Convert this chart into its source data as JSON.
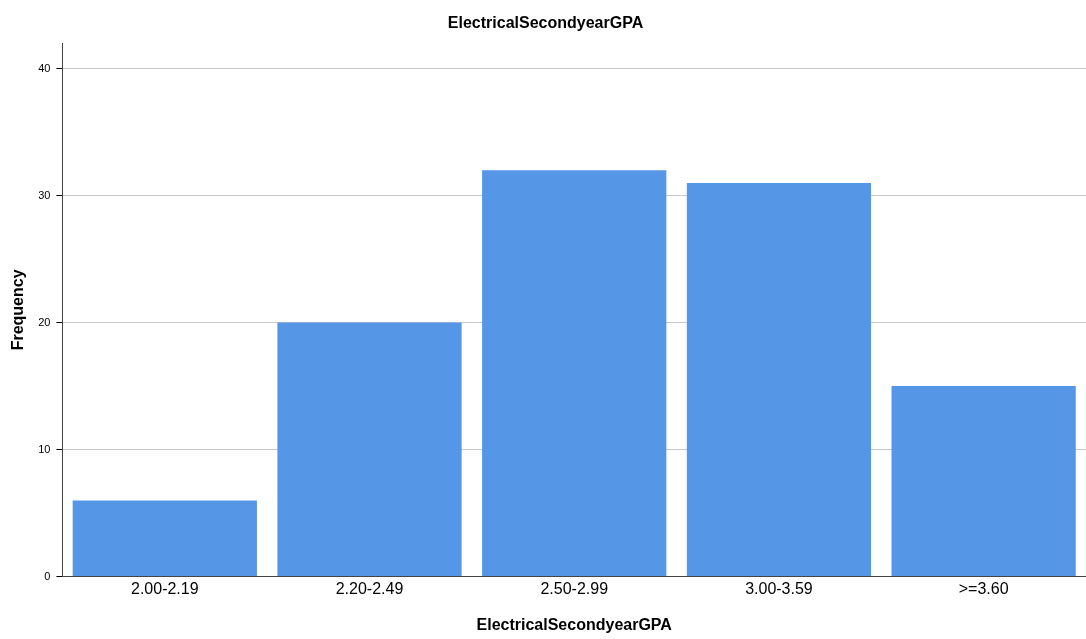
{
  "chart_data": {
    "type": "bar",
    "title": "ElectricalSecondyearGPA",
    "xlabel": "ElectricalSecondyearGPA",
    "ylabel": "Frequency",
    "categories": [
      "2.00-2.19",
      "2.20-2.49",
      "2.50-2.99",
      "3.00-3.59",
      ">=3.60"
    ],
    "values": [
      6,
      20,
      32,
      31,
      15
    ],
    "color": "#5596e6",
    "ylim": [
      0,
      42
    ],
    "yticks": [
      0,
      10,
      20,
      30,
      40
    ],
    "grid": "y"
  }
}
